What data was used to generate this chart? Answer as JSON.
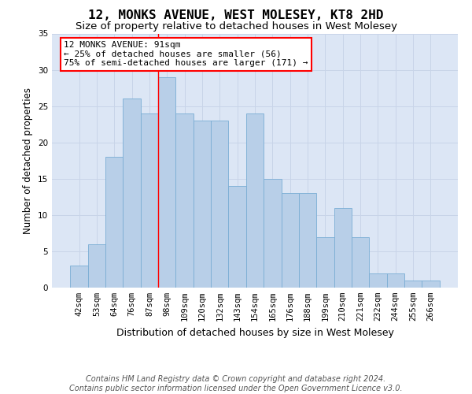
{
  "title": "12, MONKS AVENUE, WEST MOLESEY, KT8 2HD",
  "subtitle": "Size of property relative to detached houses in West Molesey",
  "xlabel": "Distribution of detached houses by size in West Molesey",
  "ylabel": "Number of detached properties",
  "footer_line1": "Contains HM Land Registry data © Crown copyright and database right 2024.",
  "footer_line2": "Contains public sector information licensed under the Open Government Licence v3.0.",
  "categories": [
    "42sqm",
    "53sqm",
    "64sqm",
    "76sqm",
    "87sqm",
    "98sqm",
    "109sqm",
    "120sqm",
    "132sqm",
    "143sqm",
    "154sqm",
    "165sqm",
    "176sqm",
    "188sqm",
    "199sqm",
    "210sqm",
    "221sqm",
    "232sqm",
    "244sqm",
    "255sqm",
    "266sqm"
  ],
  "values": [
    3,
    6,
    18,
    26,
    24,
    29,
    24,
    23,
    23,
    14,
    24,
    15,
    13,
    13,
    7,
    11,
    7,
    2,
    2,
    1,
    1
  ],
  "bar_color": "#b8cfe8",
  "bar_edge_color": "#7aadd4",
  "grid_color": "#c8d4e8",
  "background_color": "#dce6f5",
  "annotation_line1": "12 MONKS AVENUE: 91sqm",
  "annotation_line2": "← 25% of detached houses are smaller (56)",
  "annotation_line3": "75% of semi-detached houses are larger (171) →",
  "annotation_box_color": "white",
  "annotation_box_edge_color": "red",
  "vline_x_idx": 4.5,
  "vline_color": "red",
  "ylim": [
    0,
    35
  ],
  "yticks": [
    0,
    5,
    10,
    15,
    20,
    25,
    30,
    35
  ],
  "title_fontsize": 11.5,
  "subtitle_fontsize": 9.5,
  "xlabel_fontsize": 9,
  "ylabel_fontsize": 8.5,
  "tick_fontsize": 7.5,
  "annotation_fontsize": 8,
  "footer_fontsize": 7
}
